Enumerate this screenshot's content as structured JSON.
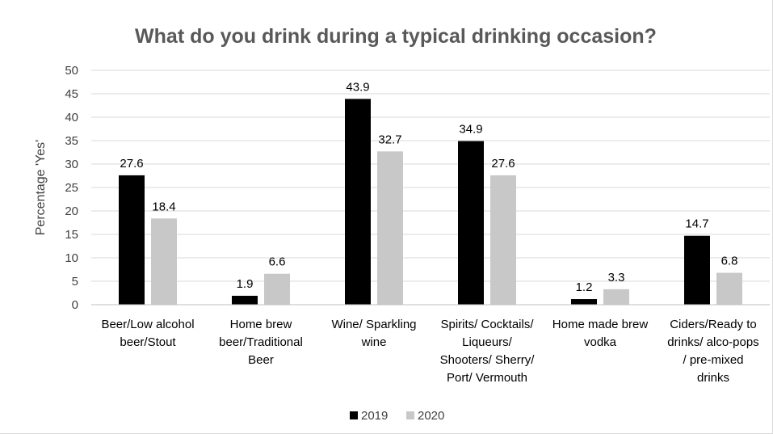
{
  "chart_data": {
    "type": "bar",
    "title": "What do you drink during a typical drinking occasion?",
    "ylabel": "Percentage 'Yes'",
    "xlabel": "",
    "ylim": [
      0,
      50
    ],
    "yticks": [
      0,
      5,
      10,
      15,
      20,
      25,
      30,
      35,
      40,
      45,
      50
    ],
    "grid": true,
    "legend_position": "bottom",
    "categories": [
      [
        "Beer/Low alcohol",
        "beer/Stout"
      ],
      [
        "Home brew",
        "beer/Traditional",
        "Beer"
      ],
      [
        "Wine/ Sparkling",
        "wine"
      ],
      [
        "Spirits/ Cocktails/",
        "Liqueurs/",
        "Shooters/ Sherry/",
        "Port/ Vermouth"
      ],
      [
        "Home made brew",
        "vodka"
      ],
      [
        "Ciders/Ready to",
        "drinks/ alco-pops",
        "/ pre-mixed",
        "drinks"
      ]
    ],
    "series": [
      {
        "name": "2019",
        "color": "#000000",
        "values": [
          27.6,
          1.9,
          43.9,
          34.9,
          1.2,
          14.7
        ],
        "labels": [
          "27.6",
          "1.9",
          "43.9",
          "34.9",
          "1.2",
          "14.7"
        ]
      },
      {
        "name": "2020",
        "color": "#c8c8c8",
        "values": [
          18.4,
          6.6,
          32.7,
          27.6,
          3.3,
          6.8
        ],
        "labels": [
          "18.4",
          "6.6",
          "32.7",
          "27.6",
          "3.3",
          "6.8"
        ]
      }
    ]
  }
}
